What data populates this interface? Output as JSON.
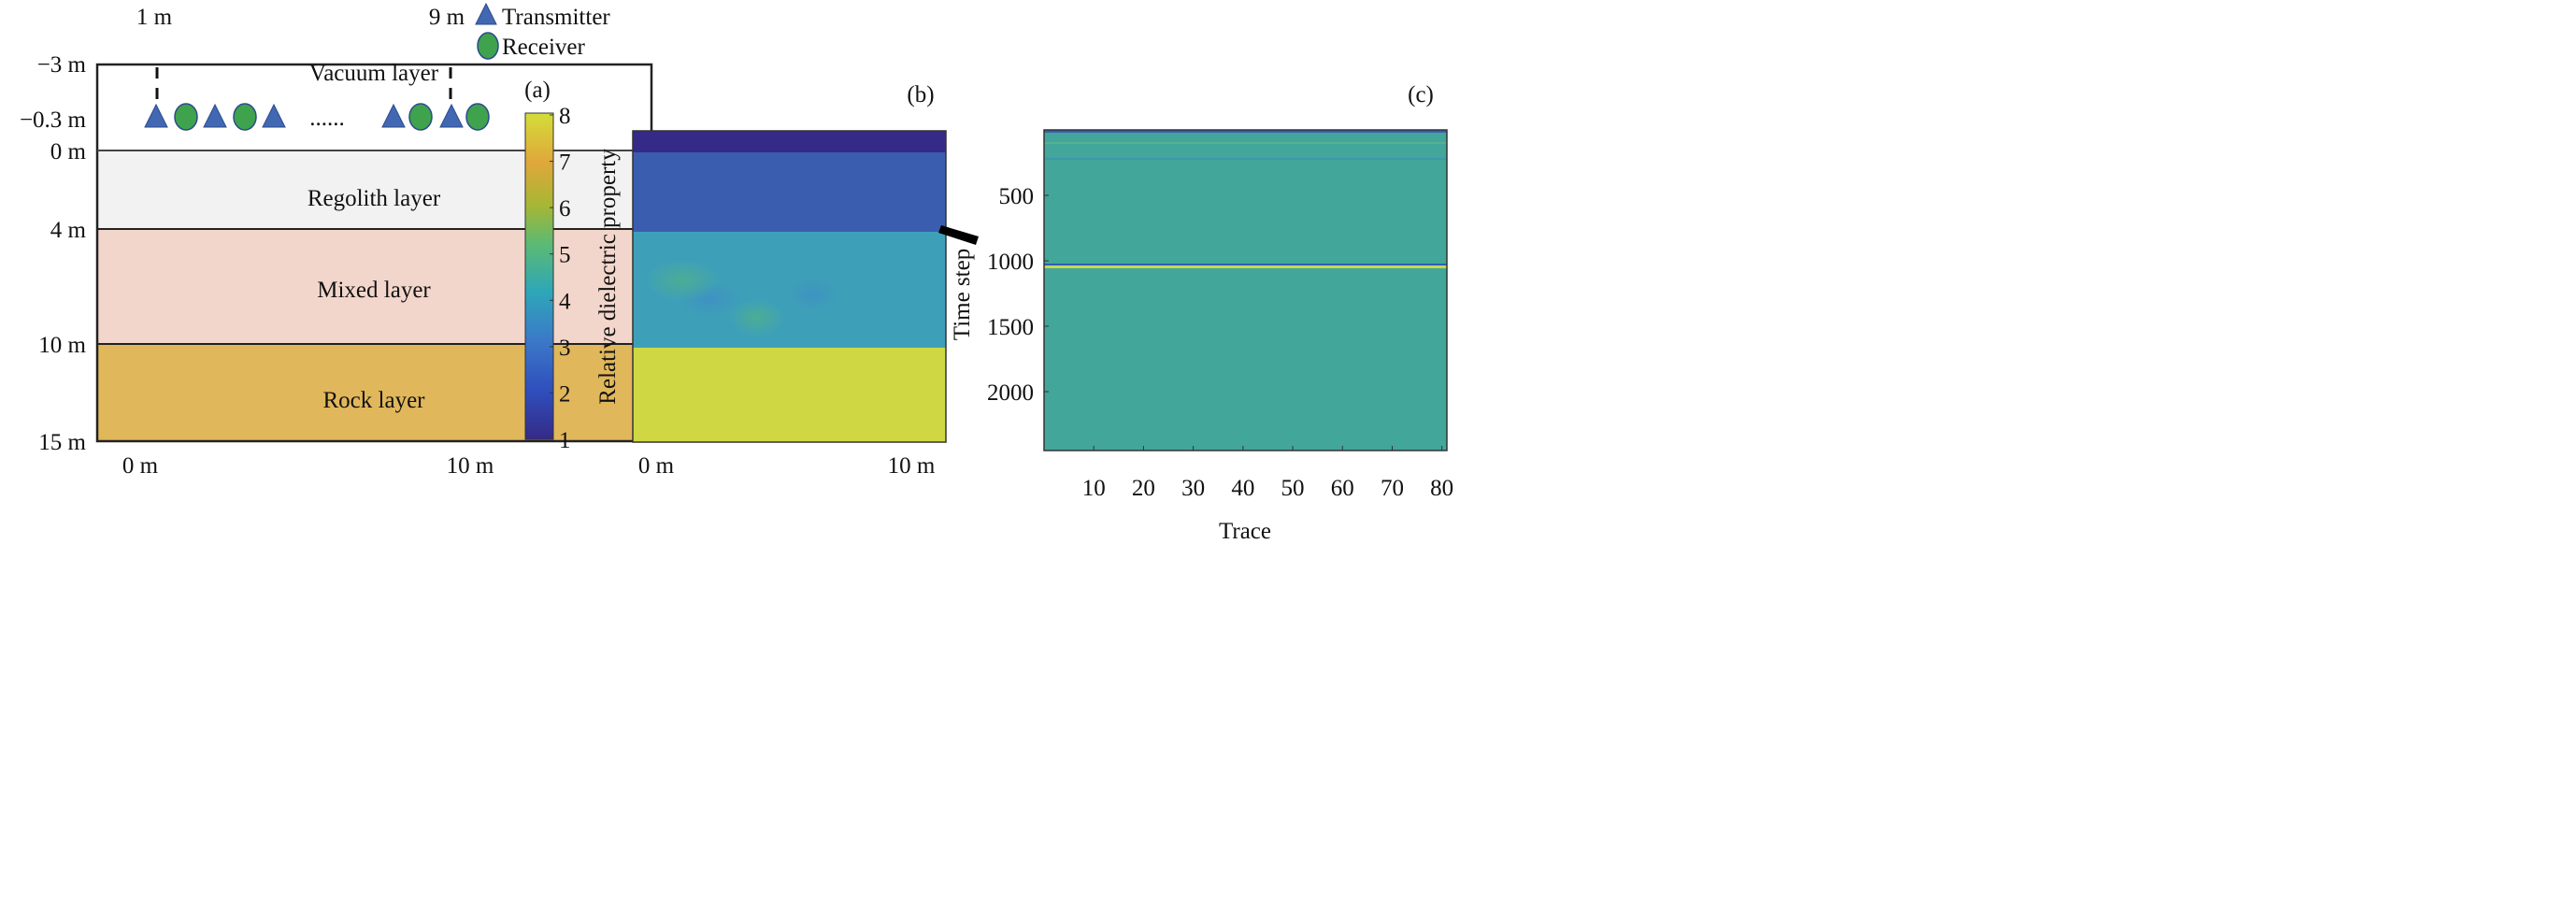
{
  "panel_a": {
    "label": "(a)",
    "top_labels": [
      "1 m",
      "9 m"
    ],
    "depth_labels": [
      "−3 m",
      "−0.3 m",
      "0 m",
      "4 m",
      "10 m",
      "15 m"
    ],
    "bottom_labels": [
      "0 m",
      "10 m"
    ],
    "layers": [
      {
        "name": "Vacuum layer",
        "color": "#ffffff"
      },
      {
        "name": "Regolith layer",
        "color": "#f2f2f2"
      },
      {
        "name": "Mixed layer",
        "color": "#f3d6cb"
      },
      {
        "name": "Rock layer",
        "color": "#e1b75c"
      }
    ],
    "separator": "......",
    "legend": {
      "transmitter": "Transmitter",
      "receiver": "Receiver",
      "transmitter_color": "#4268b3",
      "receiver_color": "#3fa34d"
    }
  },
  "colorbar": {
    "title": "Relative dielectric property",
    "ticks": [
      "1",
      "2",
      "3",
      "4",
      "5",
      "6",
      "7",
      "8"
    ],
    "range": [
      1,
      8
    ]
  },
  "panel_b": {
    "label": "(b)",
    "bottom_labels": [
      "0 m",
      "10 m"
    ],
    "layer_values": [
      1,
      2.7,
      4.2,
      7.6
    ]
  },
  "panel_c": {
    "label": "(c)",
    "ylabel": "Time step",
    "xlabel": "Trace",
    "yticks": [
      "500",
      "1000",
      "1500",
      "2000"
    ],
    "xticks": [
      "10",
      "20",
      "30",
      "40",
      "50",
      "60",
      "70",
      "80"
    ],
    "reflection_time_step": 1030,
    "ylim": [
      0,
      2450
    ],
    "xlim": [
      0,
      81
    ]
  }
}
